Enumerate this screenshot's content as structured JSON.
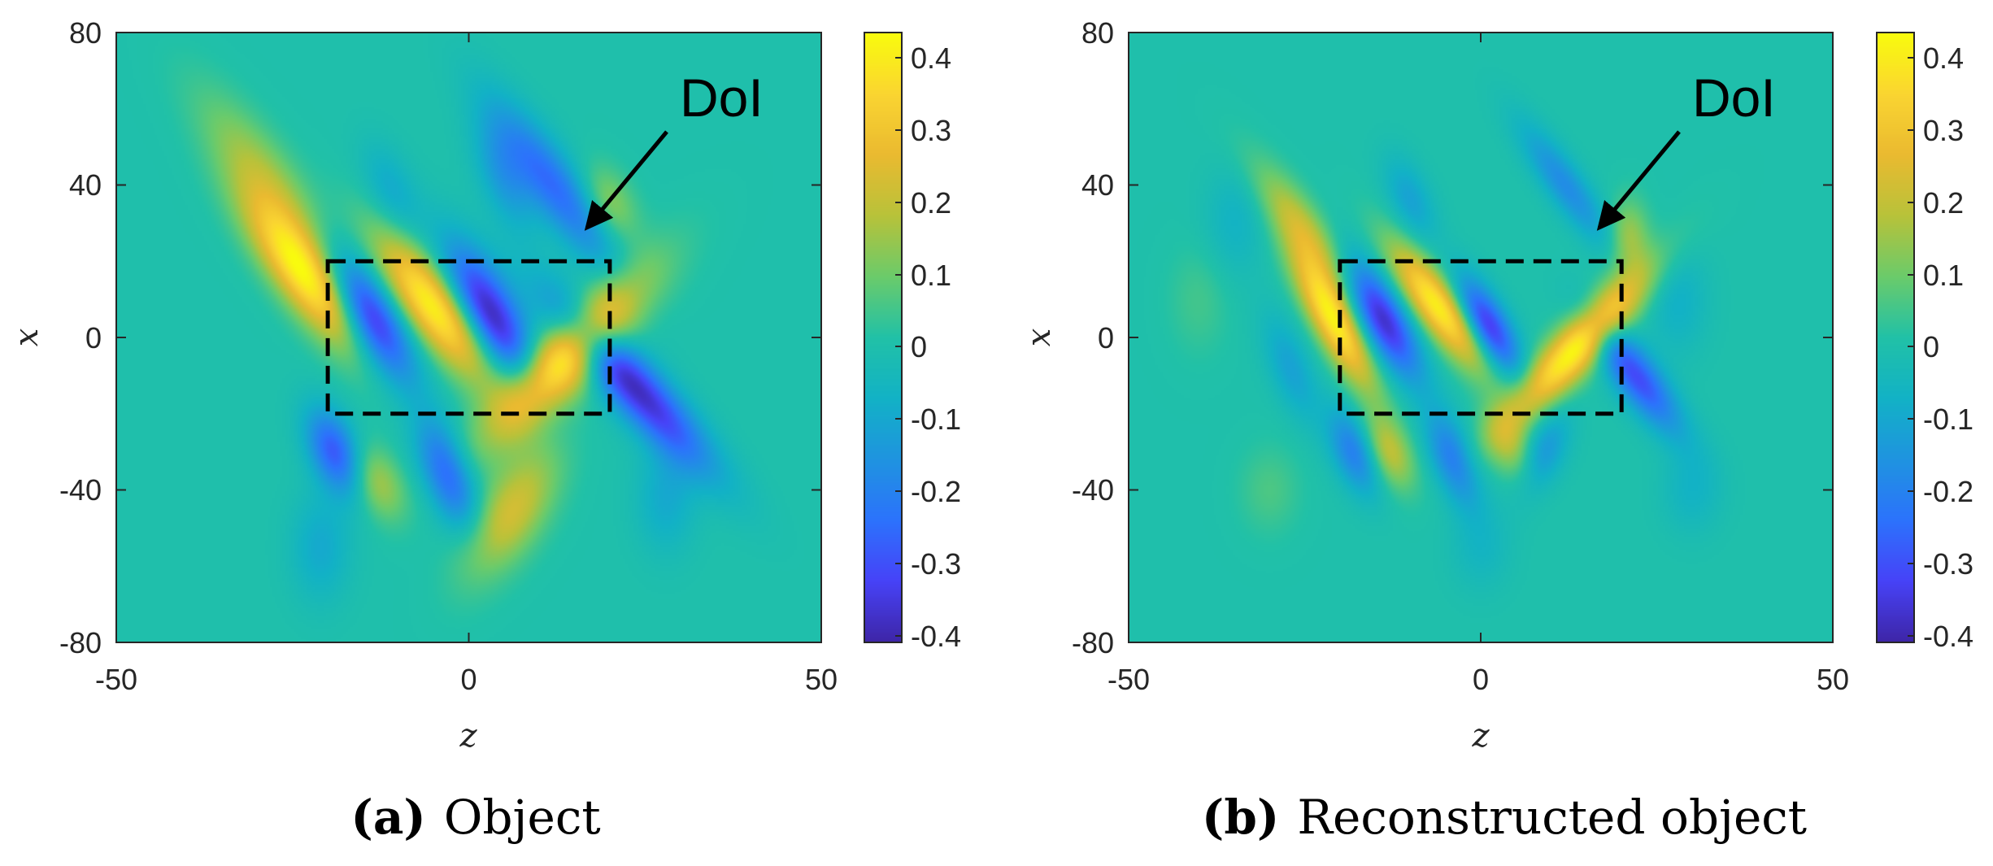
{
  "colormap": "parula",
  "colors": {
    "box": "#000000",
    "arrow": "#000000",
    "axis_frame": "#262626",
    "parula_stops": [
      "#3e26a8",
      "#4743f8",
      "#2c73fc",
      "#1f94e0",
      "#12b2c6",
      "#21c1a7",
      "#6bcb6b",
      "#b8c23a",
      "#eaba30",
      "#fad531",
      "#f9fb0e"
    ]
  },
  "chart_data": [
    {
      "type": "heatmap",
      "label": "(a)",
      "caption": "Object",
      "xlabel": "z",
      "ylabel": "x",
      "xlim": [
        -50,
        50
      ],
      "ylim": [
        -80,
        80
      ],
      "xticks": [
        "-50",
        "0",
        "50"
      ],
      "yticks": [
        "80",
        "40",
        "0",
        "-40",
        "-80"
      ],
      "clim": [
        -0.42,
        0.44
      ],
      "cticks": [
        "0.4",
        "0.3",
        "0.2",
        "0.1",
        "0",
        "-0.1",
        "-0.2",
        "-0.3",
        "-0.4"
      ],
      "doi_box": {
        "z": [
          -20,
          20
        ],
        "x": [
          -20,
          20
        ]
      },
      "annotation": {
        "text": "DoI",
        "arrow_tail": [
          28,
          54
        ],
        "arrow_head": [
          16,
          27
        ]
      },
      "blobs": [
        {
          "z": -23,
          "x": 16,
          "sz": 3.2,
          "sx": 15,
          "rot": -20,
          "a": 0.44
        },
        {
          "z": -29,
          "x": 42,
          "sz": 3.5,
          "sx": 16,
          "rot": -20,
          "a": 0.16
        },
        {
          "z": -14,
          "x": 5,
          "sz": 3.0,
          "sx": 12,
          "rot": -15,
          "a": -0.42
        },
        {
          "z": -5,
          "x": 8,
          "sz": 3.2,
          "sx": 14,
          "rot": -20,
          "a": 0.43
        },
        {
          "z": 3,
          "x": 6,
          "sz": 3.0,
          "sx": 13,
          "rot": -15,
          "a": -0.42
        },
        {
          "z": 14,
          "x": -5,
          "sz": 3.8,
          "sx": 16,
          "rot": 25,
          "a": 0.44
        },
        {
          "z": 23,
          "x": -12,
          "sz": 3.2,
          "sx": 17,
          "rot": -25,
          "a": -0.4
        },
        {
          "z": -19,
          "x": -30,
          "sz": 2.5,
          "sx": 8,
          "rot": -10,
          "a": -0.3
        },
        {
          "z": -13,
          "x": -38,
          "sz": 2.5,
          "sx": 7,
          "rot": -10,
          "a": 0.17
        },
        {
          "z": -3,
          "x": -36,
          "sz": 2.5,
          "sx": 10,
          "rot": -10,
          "a": -0.28
        },
        {
          "z": 6,
          "x": -46,
          "sz": 3.5,
          "sx": 12,
          "rot": 15,
          "a": 0.23
        },
        {
          "z": 12,
          "x": 40,
          "sz": 3.0,
          "sx": 16,
          "rot": -20,
          "a": -0.26
        },
        {
          "z": 20,
          "x": 35,
          "sz": 2.5,
          "sx": 7,
          "rot": -10,
          "a": 0.14
        },
        {
          "z": 5,
          "x": 42,
          "sz": 2.5,
          "sx": 10,
          "rot": -10,
          "a": -0.14
        },
        {
          "z": -11,
          "x": 38,
          "sz": 2.5,
          "sx": 9,
          "rot": -10,
          "a": -0.1
        },
        {
          "z": -21,
          "x": -55,
          "sz": 3.0,
          "sx": 10,
          "rot": 0,
          "a": -0.1
        },
        {
          "z": 28,
          "x": -42,
          "sz": 3.0,
          "sx": 10,
          "rot": 0,
          "a": -0.1
        }
      ]
    },
    {
      "type": "heatmap",
      "label": "(b)",
      "caption": "Reconstructed object",
      "xlabel": "z",
      "ylabel": "x",
      "xlim": [
        -50,
        50
      ],
      "ylim": [
        -80,
        80
      ],
      "xticks": [
        "-50",
        "0",
        "50"
      ],
      "yticks": [
        "80",
        "40",
        "0",
        "-40",
        "-80"
      ],
      "clim": [
        -0.42,
        0.44
      ],
      "cticks": [
        "0.4",
        "0.3",
        "0.2",
        "0.1",
        "0",
        "-0.1",
        "-0.2",
        "-0.3",
        "-0.4"
      ],
      "doi_box": {
        "z": [
          -20,
          20
        ],
        "x": [
          -20,
          20
        ]
      },
      "annotation": {
        "text": "DoI",
        "arrow_tail": [
          28,
          54
        ],
        "arrow_head": [
          16,
          27
        ]
      },
      "blobs": [
        {
          "z": -21,
          "x": 5,
          "sz": 2.2,
          "sx": 13,
          "rot": -15,
          "a": 0.42
        },
        {
          "z": -25,
          "x": 28,
          "sz": 2.5,
          "sx": 13,
          "rot": -20,
          "a": 0.2
        },
        {
          "z": -14,
          "x": 5,
          "sz": 2.5,
          "sx": 11,
          "rot": -15,
          "a": -0.4
        },
        {
          "z": -6,
          "x": 8,
          "sz": 2.5,
          "sx": 12,
          "rot": -20,
          "a": 0.42
        },
        {
          "z": 1,
          "x": 3,
          "sz": 2.2,
          "sx": 9,
          "rot": -15,
          "a": -0.38
        },
        {
          "z": 14,
          "x": -2,
          "sz": 2.8,
          "sx": 15,
          "rot": 25,
          "a": 0.44
        },
        {
          "z": 22,
          "x": -10,
          "sz": 2.5,
          "sx": 11,
          "rot": -20,
          "a": -0.32
        },
        {
          "z": 21,
          "x": 26,
          "sz": 2.0,
          "sx": 7,
          "rot": 0,
          "a": 0.16
        },
        {
          "z": -18,
          "x": -30,
          "sz": 2.2,
          "sx": 8,
          "rot": -10,
          "a": -0.22
        },
        {
          "z": -13,
          "x": -30,
          "sz": 2.2,
          "sx": 7,
          "rot": -10,
          "a": 0.2
        },
        {
          "z": -4,
          "x": -32,
          "sz": 2.2,
          "sx": 9,
          "rot": -10,
          "a": -0.22
        },
        {
          "z": 4,
          "x": -28,
          "sz": 2.2,
          "sx": 7,
          "rot": -10,
          "a": 0.15
        },
        {
          "z": 9,
          "x": -30,
          "sz": 2.2,
          "sx": 8,
          "rot": 10,
          "a": -0.15
        },
        {
          "z": 12,
          "x": 40,
          "sz": 2.2,
          "sx": 12,
          "rot": -20,
          "a": -0.18
        },
        {
          "z": -10,
          "x": 36,
          "sz": 2.2,
          "sx": 8,
          "rot": -10,
          "a": -0.12
        },
        {
          "z": -27,
          "x": -8,
          "sz": 2.2,
          "sx": 10,
          "rot": -10,
          "a": -0.12
        },
        {
          "z": 28,
          "x": 10,
          "sz": 3.0,
          "sx": 10,
          "rot": 0,
          "a": -0.08
        },
        {
          "z": -35,
          "x": 30,
          "sz": 3.0,
          "sx": 10,
          "rot": 0,
          "a": -0.07
        },
        {
          "z": 30,
          "x": -40,
          "sz": 3.0,
          "sx": 8,
          "rot": 0,
          "a": -0.07
        },
        {
          "z": -30,
          "x": -40,
          "sz": 3.0,
          "sx": 8,
          "rot": 0,
          "a": 0.06
        },
        {
          "z": 0,
          "x": -55,
          "sz": 3.0,
          "sx": 8,
          "rot": 0,
          "a": -0.06
        },
        {
          "z": -40,
          "x": 10,
          "sz": 3.0,
          "sx": 10,
          "rot": 0,
          "a": 0.05
        }
      ]
    }
  ]
}
